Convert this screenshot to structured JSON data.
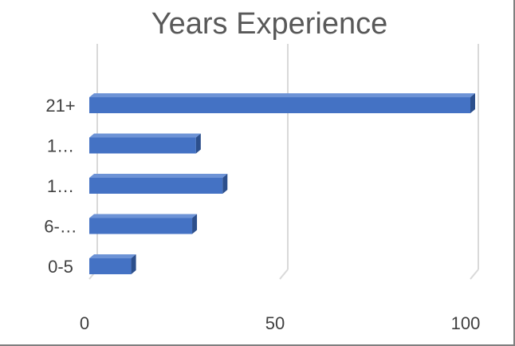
{
  "chart_data": {
    "type": "bar",
    "orientation": "horizontal",
    "style": "3d",
    "title": "Years Experience",
    "xlabel": "",
    "ylabel": "",
    "categories": [
      "0-5",
      "6-…",
      "1…",
      "1…",
      "21+"
    ],
    "values": [
      11,
      27,
      35,
      28,
      100
    ],
    "xlim": [
      0,
      100
    ],
    "xticks": [
      "0",
      "50",
      "100"
    ],
    "grid": true,
    "legend": "none",
    "colors": {
      "bar_front": "#4472c4",
      "bar_top": "#6d93d6",
      "bar_side": "#2c4f8c",
      "grid": "#d9d9d9",
      "title": "#595959",
      "ticks": "#404040"
    }
  }
}
